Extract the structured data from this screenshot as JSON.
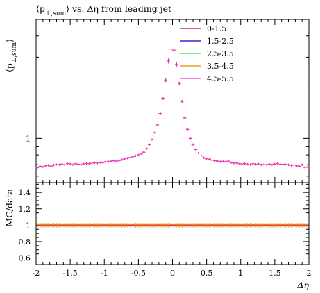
{
  "chart_data": {
    "type": "scatter",
    "title": "⟨p⊥,sum⟩ vs. Δη from leading jet",
    "title_parts": {
      "lhs": "⟨p",
      "sub": "⊥,sum",
      "rhs": "⟩ vs. Δη from leading jet"
    },
    "top": {
      "ylabel_parts": {
        "lhs": "⟨p",
        "sub": "⊥,sum",
        "rhs": "⟩"
      },
      "yscale": "log",
      "ylim": [
        0.55,
        5.0
      ],
      "yticks": [
        {
          "value": 1,
          "label": "1"
        }
      ],
      "x": [
        -1.98,
        -1.94,
        -1.9,
        -1.86,
        -1.82,
        -1.78,
        -1.74,
        -1.7,
        -1.66,
        -1.62,
        -1.58,
        -1.54,
        -1.5,
        -1.46,
        -1.42,
        -1.38,
        -1.34,
        -1.3,
        -1.26,
        -1.22,
        -1.18,
        -1.14,
        -1.1,
        -1.06,
        -1.02,
        -0.98,
        -0.94,
        -0.9,
        -0.86,
        -0.82,
        -0.78,
        -0.74,
        -0.7,
        -0.66,
        -0.62,
        -0.58,
        -0.54,
        -0.5,
        -0.46,
        -0.42,
        -0.38,
        -0.34,
        -0.3,
        -0.26,
        -0.22,
        -0.18,
        -0.14,
        -0.1,
        -0.06,
        -0.02,
        0.02,
        0.06,
        0.1,
        0.14,
        0.18,
        0.22,
        0.26,
        0.3,
        0.34,
        0.38,
        0.42,
        0.46,
        0.5,
        0.54,
        0.58,
        0.62,
        0.66,
        0.7,
        0.74,
        0.78,
        0.82,
        0.86,
        0.9,
        0.94,
        0.98,
        1.02,
        1.06,
        1.1,
        1.14,
        1.18,
        1.22,
        1.26,
        1.3,
        1.34,
        1.38,
        1.42,
        1.46,
        1.5,
        1.54,
        1.58,
        1.62,
        1.66,
        1.7,
        1.74,
        1.78,
        1.82,
        1.86,
        1.9,
        1.94,
        1.98
      ],
      "series": [
        {
          "name": "0-1.5",
          "color": "#cc0000",
          "values": [
            0.675,
            0.685,
            0.68,
            0.69,
            0.695,
            0.688,
            0.698,
            0.702,
            0.7,
            0.706,
            0.7,
            0.712,
            0.707,
            0.7,
            0.71,
            0.704,
            0.7,
            0.708,
            0.712,
            0.71,
            0.716,
            0.72,
            0.716,
            0.722,
            0.72,
            0.728,
            0.73,
            0.735,
            0.74,
            0.735,
            0.742,
            0.75,
            0.76,
            0.765,
            0.772,
            0.78,
            0.79,
            0.8,
            0.812,
            0.83,
            0.87,
            0.92,
            0.985,
            1.08,
            1.2,
            1.4,
            1.72,
            2.2,
            2.85,
            3.35,
            3.3,
            2.72,
            2.1,
            1.65,
            1.32,
            1.13,
            1.0,
            0.92,
            0.86,
            0.82,
            0.79,
            0.77,
            0.76,
            0.755,
            0.745,
            0.74,
            0.735,
            0.73,
            0.732,
            0.73,
            0.735,
            0.72,
            0.715,
            0.718,
            0.71,
            0.708,
            0.712,
            0.706,
            0.7,
            0.71,
            0.704,
            0.708,
            0.7,
            0.702,
            0.7,
            0.706,
            0.7,
            0.707,
            0.712,
            0.705,
            0.705,
            0.702,
            0.7,
            0.695,
            0.698,
            0.69,
            0.686,
            0.7,
            0.676,
            0.68
          ]
        },
        {
          "name": "1.5-2.5",
          "color": "#0000cc"
        },
        {
          "name": "2.5-3.5",
          "color": "#33dd33"
        },
        {
          "name": "3.5-4.5",
          "color": "#ee8800"
        },
        {
          "name": "4.5-5.5",
          "color": "#ee33cc"
        }
      ]
    },
    "ratio": {
      "ylabel": "MC/data",
      "ylim": [
        0.52,
        1.52
      ],
      "yticks": [
        {
          "value": 0.6,
          "label": "0.6"
        },
        {
          "value": 0.8,
          "label": "0.8"
        },
        {
          "value": 1,
          "label": "1"
        },
        {
          "value": 1.2,
          "label": "1.2"
        },
        {
          "value": 1.4,
          "label": "1.4"
        }
      ],
      "value": 1.0,
      "band_colors": [
        "#ee33cc",
        "#ee8800",
        "#cc0000"
      ]
    },
    "xlabel": "Δη",
    "xlim": [
      -2,
      2
    ],
    "xticks": [
      {
        "value": -2,
        "label": "-2"
      },
      {
        "value": -1.5,
        "label": "-1.5"
      },
      {
        "value": -1,
        "label": "-1"
      },
      {
        "value": -0.5,
        "label": "-0.5"
      },
      {
        "value": 0,
        "label": "0"
      },
      {
        "value": 0.5,
        "label": "0.5"
      },
      {
        "value": 1,
        "label": "1"
      },
      {
        "value": 1.5,
        "label": "1.5"
      },
      {
        "value": 2,
        "label": "2"
      }
    ],
    "legend_position": "top-right"
  }
}
